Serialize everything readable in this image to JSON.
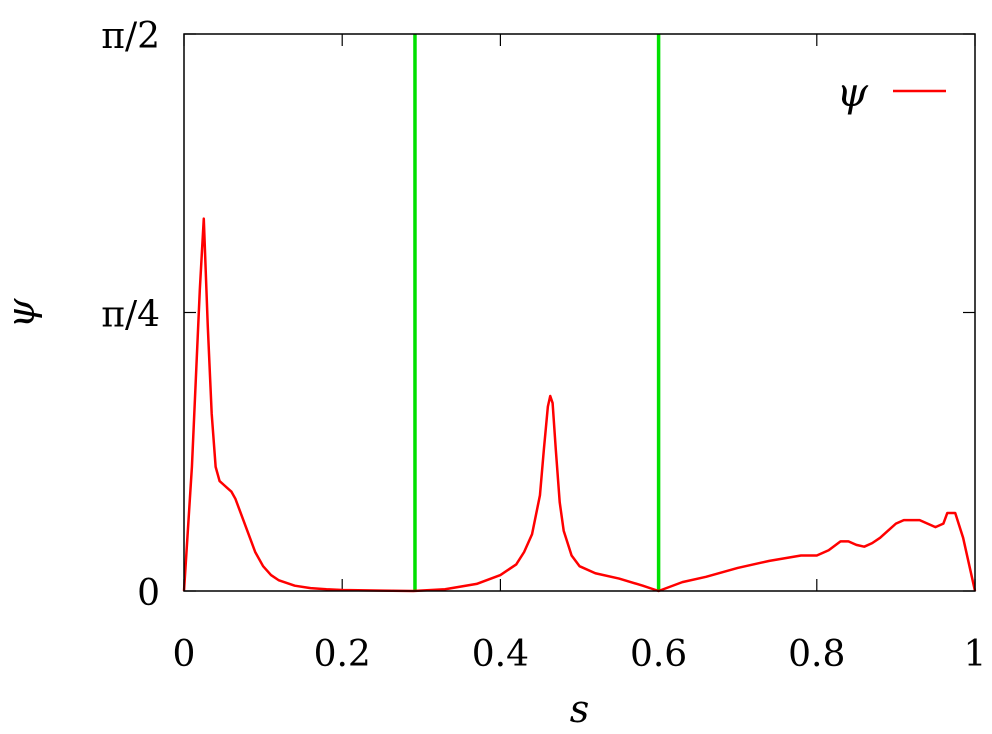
{
  "chart_data": {
    "type": "line",
    "xlabel": "s",
    "ylabel": "ψ",
    "xlim": [
      0,
      1
    ],
    "ylim": [
      0,
      1.5708
    ],
    "x_ticks": [
      {
        "value": 0,
        "label": "0"
      },
      {
        "value": 0.2,
        "label": "0.2"
      },
      {
        "value": 0.4,
        "label": "0.4"
      },
      {
        "value": 0.6,
        "label": "0.6"
      },
      {
        "value": 0.8,
        "label": "0.8"
      },
      {
        "value": 1,
        "label": "1"
      }
    ],
    "y_ticks": [
      {
        "value": 0,
        "label": "0"
      },
      {
        "value": 0.7854,
        "label": "π/4"
      },
      {
        "value": 1.5708,
        "label": "π/2"
      }
    ],
    "legend": {
      "position": "top-right",
      "entries": [
        {
          "label": "ψ",
          "color": "#ff0000"
        }
      ]
    },
    "vertical_lines": [
      {
        "x": 0.292,
        "color": "#00e000"
      },
      {
        "x": 0.6,
        "color": "#00e000"
      }
    ],
    "series": [
      {
        "name": "ψ",
        "color": "#ff0000",
        "x": [
          0,
          0.01,
          0.02,
          0.025,
          0.03,
          0.035,
          0.04,
          0.045,
          0.05,
          0.055,
          0.06,
          0.065,
          0.07,
          0.08,
          0.09,
          0.1,
          0.11,
          0.12,
          0.14,
          0.16,
          0.18,
          0.2,
          0.22,
          0.25,
          0.29,
          0.33,
          0.37,
          0.4,
          0.42,
          0.43,
          0.44,
          0.45,
          0.455,
          0.46,
          0.463,
          0.466,
          0.47,
          0.475,
          0.48,
          0.49,
          0.5,
          0.52,
          0.55,
          0.58,
          0.6,
          0.63,
          0.66,
          0.7,
          0.74,
          0.78,
          0.8,
          0.815,
          0.83,
          0.84,
          0.85,
          0.86,
          0.87,
          0.88,
          0.89,
          0.9,
          0.91,
          0.93,
          0.94,
          0.95,
          0.96,
          0.965,
          0.97,
          0.975,
          0.985,
          1.0
        ],
        "y": [
          0,
          0.35,
          0.85,
          1.05,
          0.75,
          0.5,
          0.35,
          0.31,
          0.3,
          0.29,
          0.28,
          0.26,
          0.23,
          0.17,
          0.11,
          0.07,
          0.045,
          0.03,
          0.015,
          0.008,
          0.005,
          0.003,
          0.002,
          0.001,
          0.0,
          0.005,
          0.02,
          0.045,
          0.075,
          0.11,
          0.16,
          0.27,
          0.4,
          0.52,
          0.55,
          0.53,
          0.4,
          0.25,
          0.17,
          0.1,
          0.07,
          0.05,
          0.035,
          0.015,
          0.0,
          0.025,
          0.04,
          0.065,
          0.085,
          0.1,
          0.1,
          0.115,
          0.14,
          0.14,
          0.13,
          0.125,
          0.135,
          0.15,
          0.17,
          0.19,
          0.2,
          0.2,
          0.19,
          0.18,
          0.19,
          0.22,
          0.22,
          0.22,
          0.15,
          0.0
        ]
      }
    ]
  }
}
